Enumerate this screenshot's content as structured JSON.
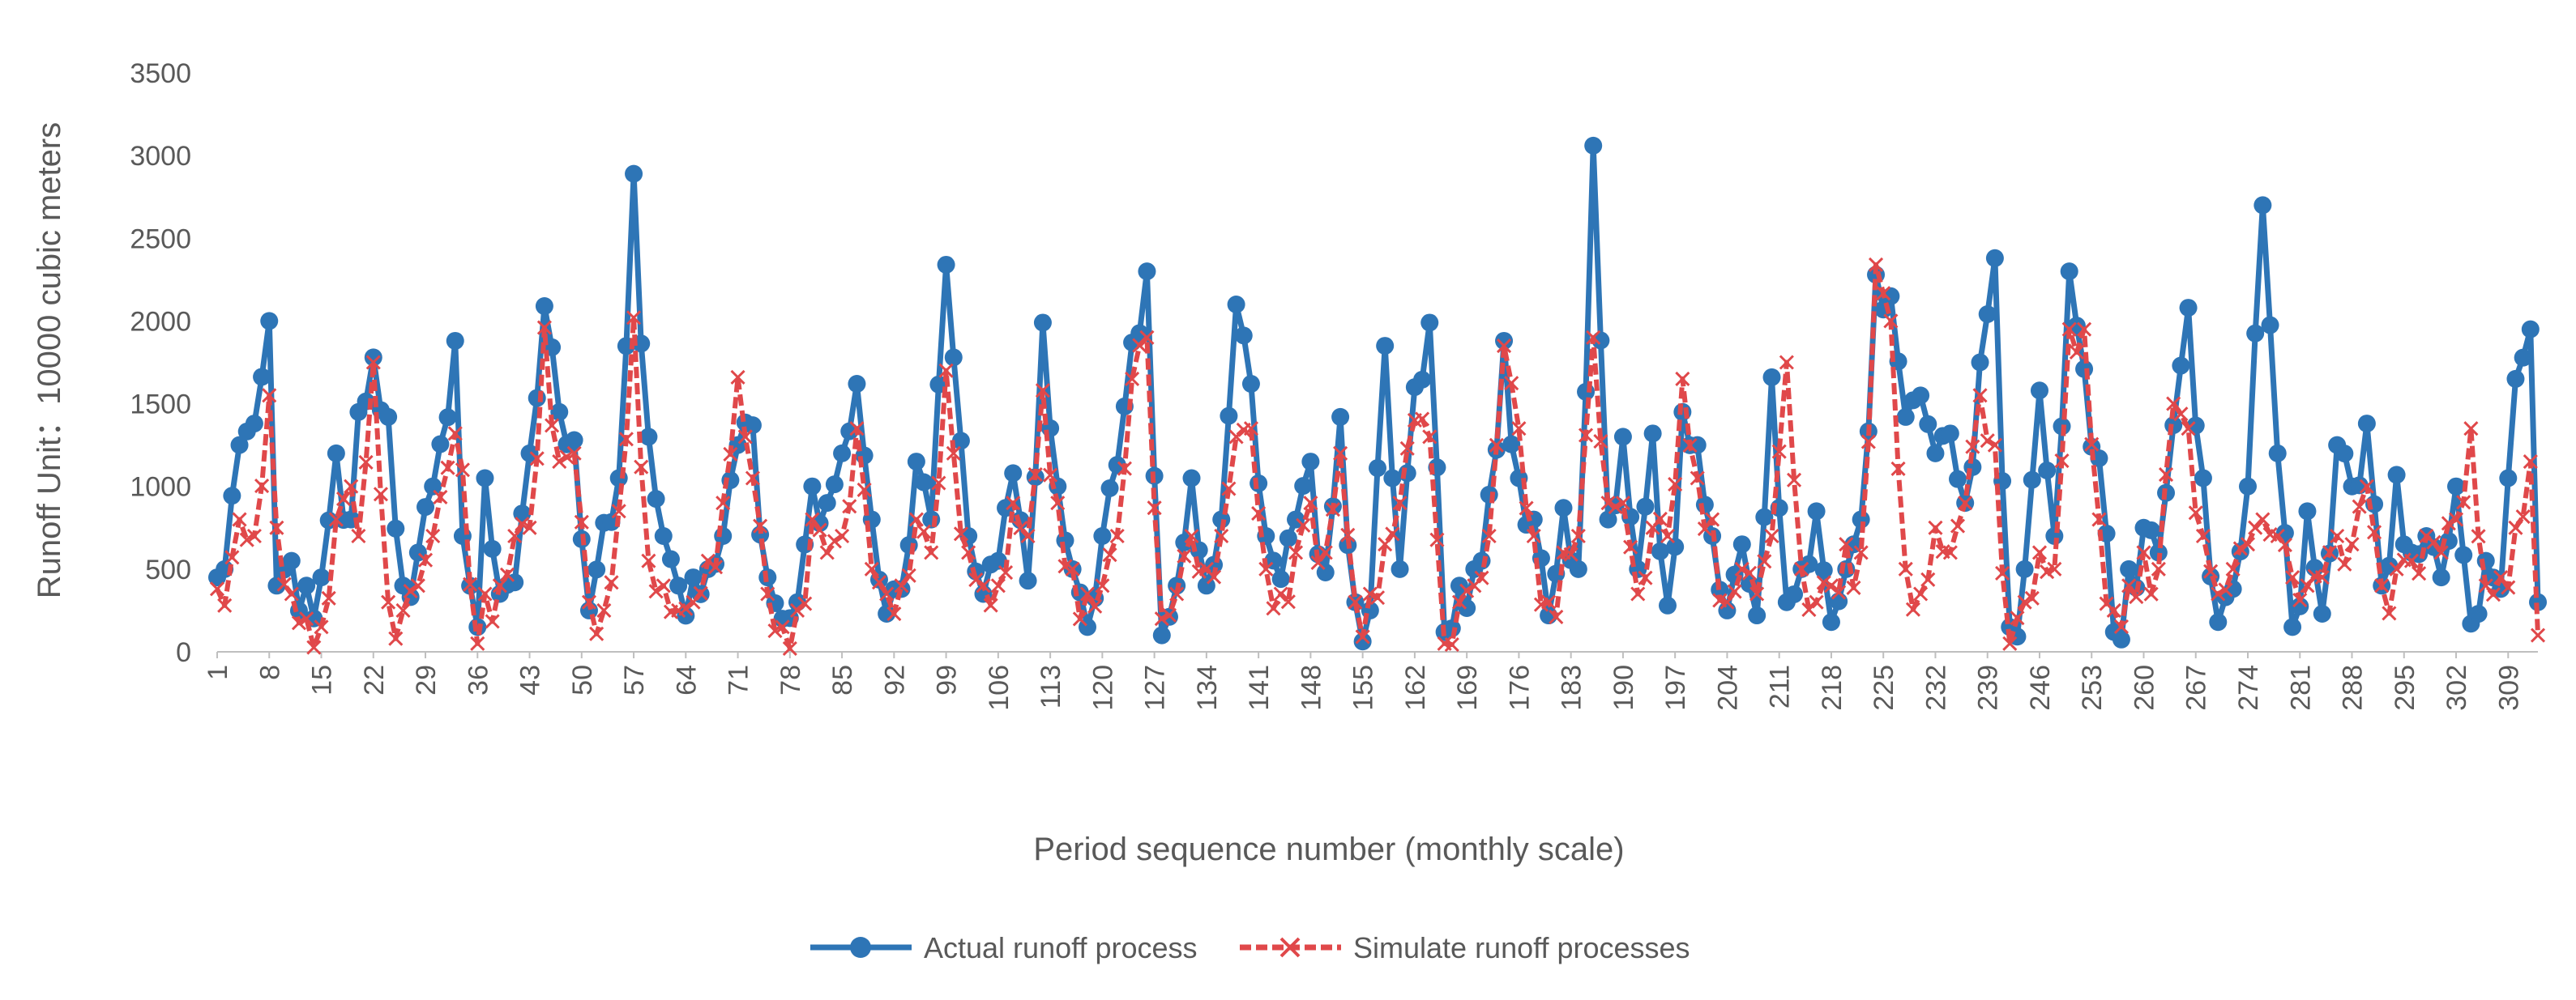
{
  "chart_data": {
    "type": "line",
    "title": "",
    "xlabel": "Period sequence number (monthly scale)",
    "ylabel": "Runoff   Unit：10000 cubic meters",
    "ylim": [
      0,
      3500
    ],
    "yticks": [
      0,
      500,
      1000,
      1500,
      2000,
      2500,
      3000,
      3500
    ],
    "x_tick_labels": [
      "1",
      "8",
      "15",
      "22",
      "29",
      "36",
      "43",
      "50",
      "57",
      "64",
      "71",
      "78",
      "85",
      "92",
      "99",
      "106",
      "113",
      "120",
      "127",
      "134",
      "141",
      "148",
      "155",
      "162",
      "169",
      "176",
      "183",
      "190",
      "197",
      "204",
      "211",
      "218",
      "225",
      "232",
      "239",
      "246",
      "253",
      "260",
      "267",
      "274",
      "281",
      "288",
      "295",
      "302",
      "309"
    ],
    "x_tick_step": 7,
    "n_points": 313,
    "legend_position": "bottom",
    "series": [
      {
        "name": "Actual runoff process",
        "color": "#2E75B6",
        "marker": "circle",
        "key_points": [
          [
            1,
            450
          ],
          [
            2,
            500
          ],
          [
            4,
            1250
          ],
          [
            6,
            1380
          ],
          [
            8,
            2000
          ],
          [
            9,
            400
          ],
          [
            11,
            550
          ],
          [
            13,
            400
          ],
          [
            15,
            450
          ],
          [
            17,
            1200
          ],
          [
            19,
            800
          ],
          [
            20,
            1450
          ],
          [
            22,
            1780
          ],
          [
            24,
            1420
          ],
          [
            26,
            400
          ],
          [
            28,
            600
          ],
          [
            30,
            1000
          ],
          [
            33,
            1880
          ],
          [
            34,
            700
          ],
          [
            36,
            150
          ],
          [
            37,
            1050
          ],
          [
            39,
            350
          ],
          [
            41,
            420
          ],
          [
            43,
            1200
          ],
          [
            45,
            2090
          ],
          [
            47,
            1450
          ],
          [
            49,
            1280
          ],
          [
            51,
            250
          ],
          [
            53,
            780
          ],
          [
            55,
            1050
          ],
          [
            57,
            2890
          ],
          [
            59,
            1300
          ],
          [
            61,
            700
          ],
          [
            63,
            400
          ],
          [
            65,
            450
          ],
          [
            67,
            500
          ],
          [
            69,
            700
          ],
          [
            71,
            1250
          ],
          [
            73,
            1370
          ],
          [
            75,
            450
          ],
          [
            77,
            200
          ],
          [
            79,
            300
          ],
          [
            81,
            1000
          ],
          [
            83,
            900
          ],
          [
            85,
            1200
          ],
          [
            87,
            1620
          ],
          [
            89,
            800
          ],
          [
            91,
            230
          ],
          [
            93,
            380
          ],
          [
            95,
            1150
          ],
          [
            97,
            800
          ],
          [
            99,
            2340
          ],
          [
            100,
            1780
          ],
          [
            102,
            700
          ],
          [
            104,
            350
          ],
          [
            106,
            550
          ],
          [
            108,
            1080
          ],
          [
            110,
            430
          ],
          [
            112,
            1990
          ],
          [
            114,
            1000
          ],
          [
            116,
            500
          ],
          [
            118,
            150
          ],
          [
            120,
            700
          ],
          [
            122,
            1130
          ],
          [
            124,
            1870
          ],
          [
            126,
            2300
          ],
          [
            128,
            100
          ],
          [
            130,
            400
          ],
          [
            132,
            1050
          ],
          [
            134,
            400
          ],
          [
            136,
            800
          ],
          [
            138,
            2100
          ],
          [
            140,
            1620
          ],
          [
            142,
            700
          ],
          [
            144,
            440
          ],
          [
            146,
            800
          ],
          [
            148,
            1150
          ],
          [
            150,
            480
          ],
          [
            152,
            1420
          ],
          [
            154,
            300
          ],
          [
            156,
            250
          ],
          [
            158,
            1850
          ],
          [
            160,
            500
          ],
          [
            162,
            1600
          ],
          [
            164,
            1990
          ],
          [
            166,
            120
          ],
          [
            168,
            400
          ],
          [
            170,
            500
          ],
          [
            172,
            950
          ],
          [
            174,
            1880
          ],
          [
            176,
            1050
          ],
          [
            178,
            800
          ],
          [
            180,
            220
          ],
          [
            182,
            870
          ],
          [
            184,
            500
          ],
          [
            186,
            3060
          ],
          [
            188,
            800
          ],
          [
            190,
            1300
          ],
          [
            192,
            500
          ],
          [
            194,
            1320
          ],
          [
            196,
            280
          ],
          [
            198,
            1450
          ],
          [
            200,
            1250
          ],
          [
            202,
            700
          ],
          [
            204,
            250
          ],
          [
            206,
            650
          ],
          [
            208,
            220
          ],
          [
            210,
            1660
          ],
          [
            212,
            300
          ],
          [
            214,
            500
          ],
          [
            216,
            850
          ],
          [
            218,
            180
          ],
          [
            220,
            500
          ],
          [
            222,
            800
          ],
          [
            224,
            2280
          ],
          [
            226,
            2150
          ],
          [
            228,
            1420
          ],
          [
            230,
            1550
          ],
          [
            232,
            1200
          ],
          [
            234,
            1320
          ],
          [
            236,
            900
          ],
          [
            238,
            1750
          ],
          [
            240,
            2380
          ],
          [
            242,
            150
          ],
          [
            244,
            500
          ],
          [
            246,
            1580
          ],
          [
            248,
            700
          ],
          [
            250,
            2300
          ],
          [
            252,
            1710
          ],
          [
            254,
            1170
          ],
          [
            256,
            120
          ],
          [
            258,
            500
          ],
          [
            260,
            750
          ],
          [
            262,
            600
          ],
          [
            264,
            1370
          ],
          [
            266,
            2080
          ],
          [
            268,
            1050
          ],
          [
            270,
            180
          ],
          [
            272,
            380
          ],
          [
            274,
            1000
          ],
          [
            276,
            2700
          ],
          [
            278,
            1200
          ],
          [
            280,
            150
          ],
          [
            282,
            850
          ],
          [
            284,
            230
          ],
          [
            286,
            1250
          ],
          [
            288,
            1000
          ],
          [
            290,
            1380
          ],
          [
            292,
            400
          ],
          [
            294,
            1070
          ],
          [
            296,
            600
          ],
          [
            298,
            700
          ],
          [
            300,
            450
          ],
          [
            302,
            1000
          ],
          [
            304,
            170
          ],
          [
            306,
            550
          ],
          [
            308,
            380
          ],
          [
            310,
            1650
          ],
          [
            312,
            1950
          ],
          [
            313,
            300
          ]
        ]
      },
      {
        "name": "Simulate runoff processes",
        "color": "#E0484A",
        "marker": "x",
        "key_points": [
          [
            1,
            380
          ],
          [
            2,
            280
          ],
          [
            4,
            800
          ],
          [
            6,
            700
          ],
          [
            8,
            1550
          ],
          [
            9,
            750
          ],
          [
            11,
            350
          ],
          [
            13,
            200
          ],
          [
            15,
            150
          ],
          [
            17,
            800
          ],
          [
            19,
            1000
          ],
          [
            20,
            700
          ],
          [
            22,
            1750
          ],
          [
            24,
            300
          ],
          [
            26,
            250
          ],
          [
            28,
            400
          ],
          [
            30,
            700
          ],
          [
            33,
            1320
          ],
          [
            34,
            1100
          ],
          [
            36,
            50
          ],
          [
            37,
            350
          ],
          [
            39,
            400
          ],
          [
            41,
            700
          ],
          [
            43,
            750
          ],
          [
            45,
            1960
          ],
          [
            47,
            1150
          ],
          [
            49,
            1200
          ],
          [
            51,
            300
          ],
          [
            53,
            250
          ],
          [
            55,
            850
          ],
          [
            57,
            2020
          ],
          [
            59,
            550
          ],
          [
            61,
            400
          ],
          [
            63,
            250
          ],
          [
            65,
            300
          ],
          [
            67,
            550
          ],
          [
            69,
            900
          ],
          [
            71,
            1660
          ],
          [
            73,
            1050
          ],
          [
            75,
            350
          ],
          [
            77,
            150
          ],
          [
            79,
            250
          ],
          [
            81,
            800
          ],
          [
            83,
            600
          ],
          [
            85,
            700
          ],
          [
            87,
            1350
          ],
          [
            89,
            500
          ],
          [
            91,
            350
          ],
          [
            93,
            400
          ],
          [
            95,
            800
          ],
          [
            97,
            600
          ],
          [
            99,
            1700
          ],
          [
            100,
            1200
          ],
          [
            102,
            600
          ],
          [
            104,
            400
          ],
          [
            106,
            400
          ],
          [
            108,
            900
          ],
          [
            110,
            700
          ],
          [
            112,
            1580
          ],
          [
            114,
            900
          ],
          [
            116,
            500
          ],
          [
            118,
            350
          ],
          [
            120,
            400
          ],
          [
            122,
            700
          ],
          [
            124,
            1650
          ],
          [
            126,
            1900
          ],
          [
            128,
            200
          ],
          [
            130,
            350
          ],
          [
            132,
            700
          ],
          [
            134,
            500
          ],
          [
            136,
            700
          ],
          [
            138,
            1300
          ],
          [
            140,
            1350
          ],
          [
            142,
            500
          ],
          [
            144,
            350
          ],
          [
            146,
            600
          ],
          [
            148,
            900
          ],
          [
            150,
            600
          ],
          [
            152,
            1200
          ],
          [
            154,
            300
          ],
          [
            156,
            350
          ],
          [
            158,
            650
          ],
          [
            160,
            900
          ],
          [
            162,
            1400
          ],
          [
            164,
            1300
          ],
          [
            166,
            50
          ],
          [
            168,
            300
          ],
          [
            170,
            400
          ],
          [
            172,
            700
          ],
          [
            174,
            1850
          ],
          [
            176,
            1350
          ],
          [
            178,
            700
          ],
          [
            180,
            300
          ],
          [
            182,
            600
          ],
          [
            184,
            700
          ],
          [
            186,
            1900
          ],
          [
            188,
            900
          ],
          [
            190,
            900
          ],
          [
            192,
            350
          ],
          [
            194,
            750
          ],
          [
            196,
            700
          ],
          [
            198,
            1650
          ],
          [
            200,
            1050
          ],
          [
            202,
            800
          ],
          [
            204,
            300
          ],
          [
            206,
            500
          ],
          [
            208,
            350
          ],
          [
            210,
            700
          ],
          [
            212,
            1750
          ],
          [
            214,
            500
          ],
          [
            216,
            300
          ],
          [
            218,
            400
          ],
          [
            220,
            650
          ],
          [
            222,
            600
          ],
          [
            224,
            2340
          ],
          [
            226,
            2000
          ],
          [
            228,
            500
          ],
          [
            230,
            350
          ],
          [
            232,
            750
          ],
          [
            234,
            600
          ],
          [
            236,
            900
          ],
          [
            238,
            1550
          ],
          [
            240,
            1250
          ],
          [
            242,
            50
          ],
          [
            244,
            300
          ],
          [
            246,
            600
          ],
          [
            248,
            500
          ],
          [
            250,
            1950
          ],
          [
            252,
            1950
          ],
          [
            254,
            800
          ],
          [
            256,
            250
          ],
          [
            258,
            400
          ],
          [
            260,
            600
          ],
          [
            262,
            500
          ],
          [
            264,
            1500
          ],
          [
            266,
            1350
          ],
          [
            268,
            700
          ],
          [
            270,
            350
          ],
          [
            272,
            500
          ],
          [
            274,
            650
          ],
          [
            276,
            800
          ],
          [
            278,
            700
          ],
          [
            280,
            450
          ],
          [
            282,
            400
          ],
          [
            284,
            450
          ],
          [
            286,
            700
          ],
          [
            288,
            650
          ],
          [
            290,
            1000
          ],
          [
            292,
            400
          ],
          [
            294,
            500
          ],
          [
            296,
            550
          ],
          [
            298,
            700
          ],
          [
            300,
            600
          ],
          [
            302,
            800
          ],
          [
            304,
            1350
          ],
          [
            306,
            400
          ],
          [
            308,
            450
          ],
          [
            310,
            750
          ],
          [
            312,
            1150
          ],
          [
            313,
            100
          ]
        ]
      }
    ]
  }
}
